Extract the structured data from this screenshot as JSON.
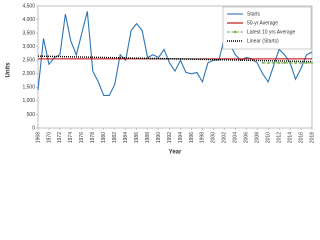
{
  "chart_data": {
    "type": "line",
    "x_label": "Year",
    "y_label": "Units",
    "xlim": [
      1968,
      2018
    ],
    "xticks": [
      1968,
      1970,
      1972,
      1974,
      1976,
      1978,
      1980,
      1982,
      1984,
      1986,
      1988,
      1990,
      1992,
      1994,
      1996,
      1998,
      2000,
      2002,
      2004,
      2006,
      2008,
      2010,
      2012,
      2014,
      2016,
      2018
    ],
    "ylim": [
      0,
      4500
    ],
    "yticks": [
      0,
      500,
      {
        "value": 1000,
        "label": "1,000"
      },
      {
        "value": 1500,
        "label": "1,500"
      },
      {
        "value": 2000,
        "label": "2,000"
      },
      {
        "value": 2500,
        "label": "2,500"
      },
      {
        "value": 3000,
        "label": "3,000"
      },
      {
        "value": 3500,
        "label": "3,500"
      },
      {
        "value": 4000,
        "label": "4,000"
      },
      {
        "value": 4500,
        "label": "4,500"
      }
    ],
    "legend": "top-right",
    "series": [
      {
        "name": "Starts",
        "color": "#2e75b6",
        "style": "solid",
        "marker": false,
        "x": [
          1968,
          1969,
          1970,
          1971,
          1972,
          1973,
          1974,
          1975,
          1976,
          1977,
          1978,
          1979,
          1980,
          1981,
          1982,
          1983,
          1984,
          1985,
          1986,
          1987,
          1988,
          1989,
          1990,
          1991,
          1992,
          1993,
          1994,
          1995,
          1996,
          1997,
          1998,
          1999,
          2000,
          2001,
          2002,
          2003,
          2004,
          2005,
          2006,
          2007,
          2008,
          2009,
          2010,
          2011,
          2012,
          2013,
          2014,
          2015,
          2016,
          2017,
          2018
        ],
        "values": [
          1400,
          3300,
          2350,
          2600,
          2700,
          4200,
          3200,
          2700,
          3500,
          4300,
          2100,
          1700,
          1200,
          1200,
          1600,
          2700,
          2500,
          3600,
          3850,
          3600,
          2600,
          2700,
          2600,
          2900,
          2400,
          2100,
          2500,
          2050,
          2000,
          2050,
          1700,
          2400,
          2500,
          2500,
          3300,
          3100,
          2700,
          2500,
          2600,
          2550,
          2400,
          2000,
          1700,
          2300,
          2900,
          2700,
          2400,
          1800,
          2200,
          2700,
          2800
        ]
      },
      {
        "name": "50-yr Average",
        "color": "#c00000",
        "style": "solid",
        "marker": false,
        "x": [
          1968,
          2018
        ],
        "values": [
          2550,
          2550
        ]
      },
      {
        "name": "Latest 10 yrs Average",
        "color": "#70ad47",
        "style": "dashed",
        "marker": true,
        "x": [
          2009,
          2010,
          2011,
          2012,
          2013,
          2014,
          2015,
          2016,
          2017,
          2018
        ],
        "values": [
          2400,
          2400,
          2400,
          2400,
          2400,
          2400,
          2400,
          2400,
          2400,
          2400
        ]
      },
      {
        "name": "Linear (Starts)",
        "color": "#000000",
        "style": "dotted",
        "marker": false,
        "x": [
          1968,
          2018
        ],
        "values": [
          2650,
          2450
        ]
      }
    ]
  }
}
